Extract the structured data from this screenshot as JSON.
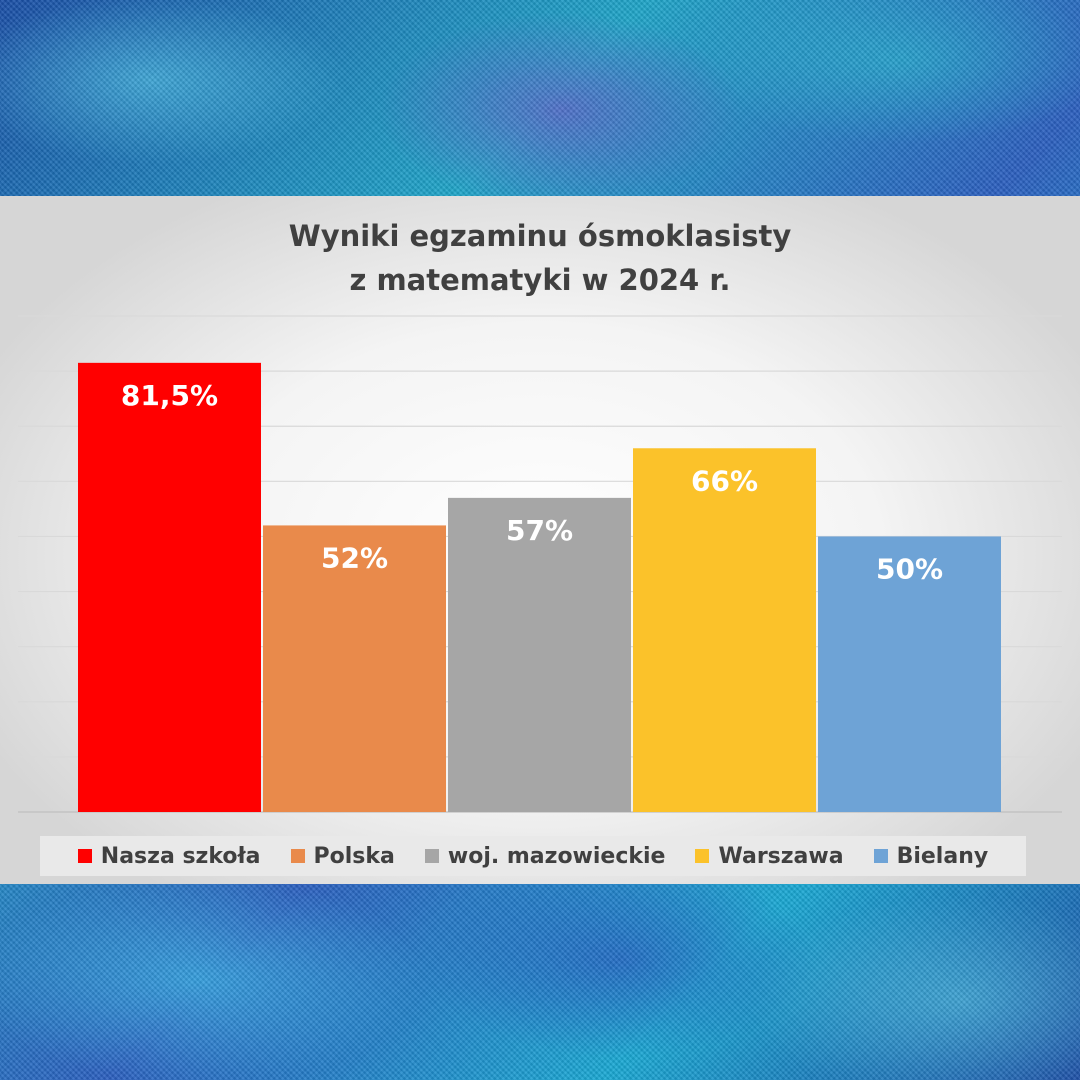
{
  "chart_data": {
    "type": "bar",
    "title_lines": [
      "Wyniki egzaminu ósmoklasisty",
      "z matematyki w 2024 r."
    ],
    "xlabel": "",
    "ylabel": "",
    "ylim": [
      0,
      90
    ],
    "grid": true,
    "legend_position": "bottom",
    "series": [
      {
        "name": "Nasza szkoła",
        "value": 81.5,
        "label": "81,5%",
        "color": "#ff0000"
      },
      {
        "name": "Polska",
        "value": 52,
        "label": "52%",
        "color": "#e98a4b"
      },
      {
        "name": "woj. mazowieckie",
        "value": 57,
        "label": "57%",
        "color": "#a6a6a6"
      },
      {
        "name": "Warszawa",
        "value": 66,
        "label": "66%",
        "color": "#fbc22a"
      },
      {
        "name": "Bielany",
        "value": 50,
        "label": "50%",
        "color": "#6ea3d6"
      }
    ]
  }
}
